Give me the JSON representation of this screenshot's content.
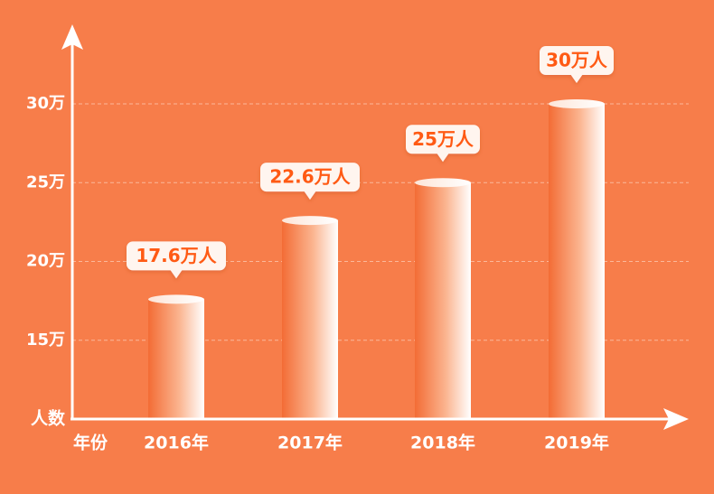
{
  "chart_data": {
    "type": "bar",
    "categories": [
      "2016年",
      "2017年",
      "2018年",
      "2019年"
    ],
    "values": [
      17.6,
      22.6,
      25,
      30
    ],
    "data_labels": [
      "17.6万人",
      "22.6万人",
      "25万人",
      "30万人"
    ],
    "yticks": [
      {
        "value": 15,
        "label": "15万"
      },
      {
        "value": 20,
        "label": "20万"
      },
      {
        "value": 25,
        "label": "25万"
      },
      {
        "value": 30,
        "label": "30万"
      }
    ],
    "ylim": [
      10,
      30
    ],
    "ylabel": "人数",
    "xlabel": "年份",
    "grid": "dashed horizontal",
    "colors": {
      "background": "#f77d4a",
      "axis": "#ffffff",
      "grid": "#fbb89a",
      "bar_left": "#f4733c",
      "bar_right": "#ffffff",
      "label_text": "#ff5a14",
      "label_bg": "#fff5ef"
    }
  }
}
